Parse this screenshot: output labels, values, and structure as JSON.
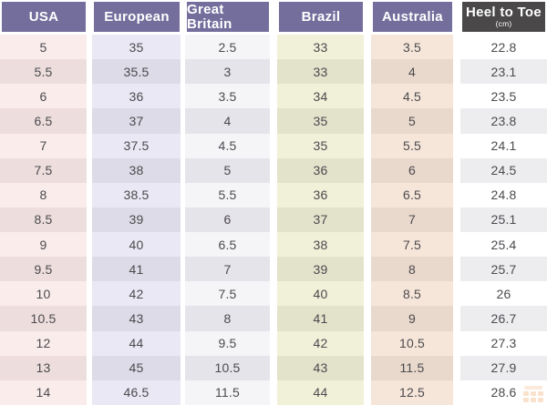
{
  "table": {
    "headers": [
      {
        "label": "USA"
      },
      {
        "label": "European"
      },
      {
        "label": "Great Britain"
      },
      {
        "label": "Brazil"
      },
      {
        "label": "Australia"
      },
      {
        "label": "Heel to Toe",
        "sublabel": "(cm)"
      }
    ],
    "rows": [
      [
        "5",
        "35",
        "2.5",
        "33",
        "3.5",
        "22.8"
      ],
      [
        "5.5",
        "35.5",
        "3",
        "33",
        "4",
        "23.1"
      ],
      [
        "6",
        "36",
        "3.5",
        "34",
        "4.5",
        "23.5"
      ],
      [
        "6.5",
        "37",
        "4",
        "35",
        "5",
        "23.8"
      ],
      [
        "7",
        "37.5",
        "4.5",
        "35",
        "5.5",
        "24.1"
      ],
      [
        "7.5",
        "38",
        "5",
        "36",
        "6",
        "24.5"
      ],
      [
        "8",
        "38.5",
        "5.5",
        "36",
        "6.5",
        "24.8"
      ],
      [
        "8.5",
        "39",
        "6",
        "37",
        "7",
        "25.1"
      ],
      [
        "9",
        "40",
        "6.5",
        "38",
        "7.5",
        "25.4"
      ],
      [
        "9.5",
        "41",
        "7",
        "39",
        "8",
        "25.7"
      ],
      [
        "10",
        "42",
        "7.5",
        "40",
        "8.5",
        "26"
      ],
      [
        "10.5",
        "43",
        "8",
        "41",
        "9",
        "26.7"
      ],
      [
        "12",
        "44",
        "9.5",
        "42",
        "10.5",
        "27.3"
      ],
      [
        "13",
        "45",
        "10.5",
        "43",
        "11.5",
        "27.9"
      ],
      [
        "14",
        "46.5",
        "11.5",
        "44",
        "12.5",
        "28.6"
      ]
    ]
  },
  "footer": {
    "watermark_icon": "size-chart-grid-icon"
  },
  "colors": {
    "header_bg": "#746e9c",
    "header_dark_bg": "#4a4848",
    "header_text": "#ffffff",
    "cell_text": "#4c4a4e",
    "usa_light": "#f9eceb",
    "usa_dark": "#eddedd",
    "eur_light": "#e9e8f4",
    "eur_dark": "#dcdbe7",
    "gb_light": "#f5f5f8",
    "gb_dark": "#e5e4ea",
    "br_light": "#f1f0d8",
    "br_dark": "#e3e2cb",
    "au_light": "#f6e6d9",
    "au_dark": "#e9d9cc",
    "ht_light": "#ffffff",
    "ht_dark": "#edecef",
    "watermark": "#f0a564"
  }
}
